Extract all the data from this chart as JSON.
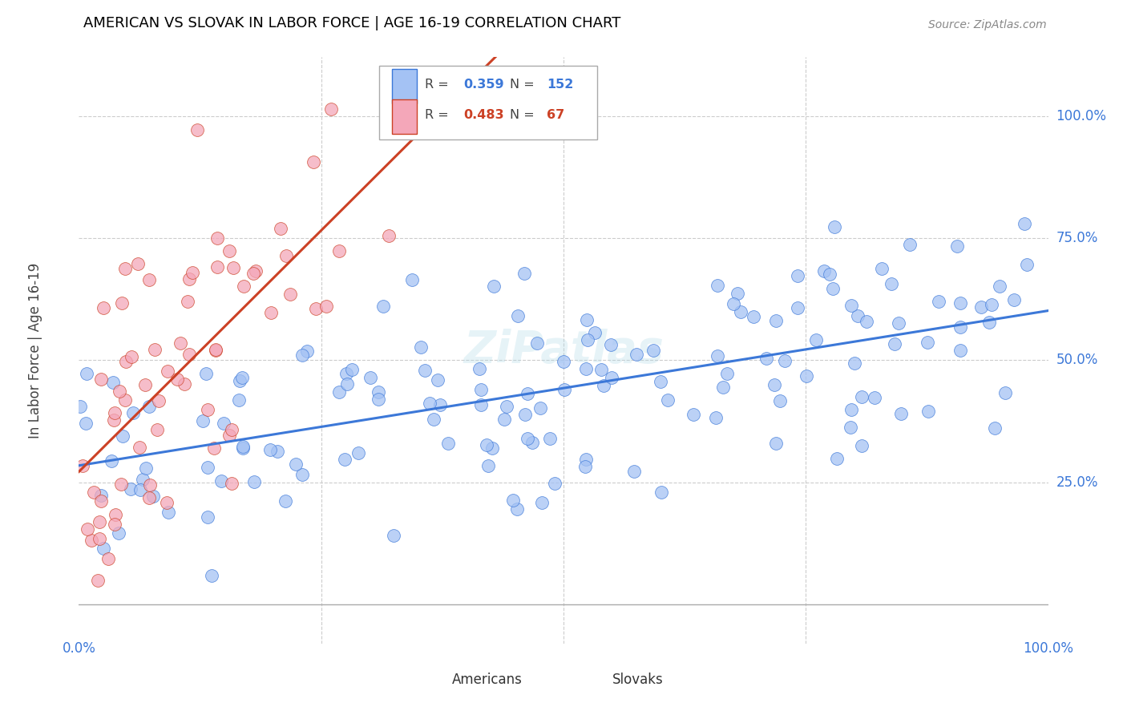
{
  "title": "AMERICAN VS SLOVAK IN LABOR FORCE | AGE 16-19 CORRELATION CHART",
  "source": "Source: ZipAtlas.com",
  "ylabel": "In Labor Force | Age 16-19",
  "watermark": "ZiPatlas",
  "american_R": 0.359,
  "american_N": 152,
  "slovak_R": 0.483,
  "slovak_N": 67,
  "american_color": "#a4c2f4",
  "slovak_color": "#f4a7b9",
  "american_line_color": "#3c78d8",
  "slovak_line_color": "#cc4125",
  "background_color": "#ffffff",
  "grid_color": "#cccccc",
  "title_color": "#000000",
  "axis_label_color": "#3c78d8",
  "xlim": [
    0.0,
    1.0
  ],
  "ylim": [
    -0.08,
    1.12
  ],
  "y_ticks": [
    0.25,
    0.5,
    0.75,
    1.0
  ],
  "y_tick_labels": [
    "25.0%",
    "50.0%",
    "75.0%",
    "100.0%"
  ]
}
